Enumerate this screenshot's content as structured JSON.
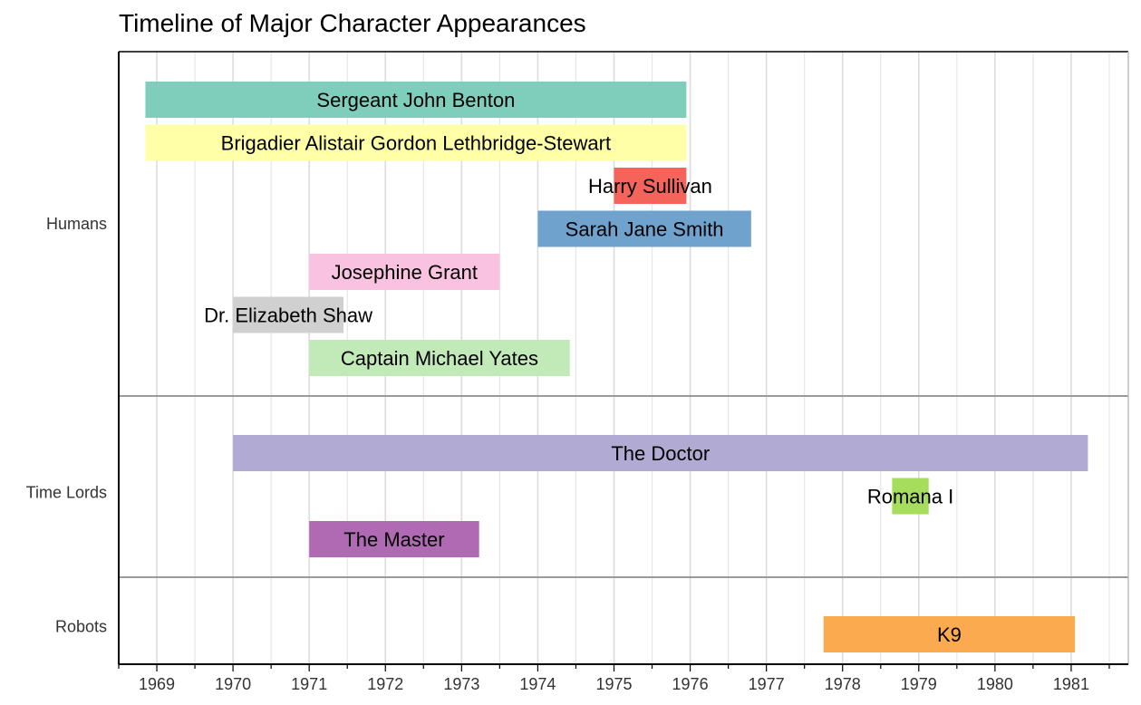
{
  "chart_data": {
    "type": "timeline",
    "title": "Timeline of Major Character Appearances",
    "xlabel": "",
    "ylabel": "",
    "xlim": [
      1968.5,
      1981.75
    ],
    "x_ticks": [
      1969,
      1970,
      1971,
      1972,
      1973,
      1974,
      1975,
      1976,
      1977,
      1978,
      1979,
      1980,
      1981
    ],
    "grid": true,
    "groups": [
      {
        "name": "Humans",
        "items": [
          {
            "label": "Sergeant John Benton",
            "start": 1968.85,
            "end": 1975.95,
            "color": "#7FCDBB"
          },
          {
            "label": "Brigadier Alistair Gordon Lethbridge-Stewart",
            "start": 1968.85,
            "end": 1975.95,
            "color": "#FFFFA8"
          },
          {
            "label": "Harry Sullivan",
            "start": 1975.0,
            "end": 1975.95,
            "color": "#F4645A"
          },
          {
            "label": "Sarah Jane Smith",
            "start": 1974.0,
            "end": 1976.8,
            "color": "#6FA3CD"
          },
          {
            "label": "Josephine Grant",
            "start": 1971.0,
            "end": 1973.5,
            "color": "#F8C2E0"
          },
          {
            "label": "Dr. Elizabeth Shaw",
            "start": 1970.0,
            "end": 1971.45,
            "color": "#D0D0D0"
          },
          {
            "label": "Captain Michael Yates",
            "start": 1971.0,
            "end": 1974.42,
            "color": "#C2E9B8"
          }
        ]
      },
      {
        "name": "Time Lords",
        "items": [
          {
            "label": "The Doctor",
            "start": 1970.0,
            "end": 1981.22,
            "color": "#B1ABD3"
          },
          {
            "label": "Romana I",
            "start": 1978.65,
            "end": 1979.13,
            "color": "#A6DD5C"
          },
          {
            "label": "The Master",
            "start": 1971.0,
            "end": 1973.23,
            "color": "#AF6AB3"
          }
        ]
      },
      {
        "name": "Robots",
        "items": [
          {
            "label": "K9",
            "start": 1977.75,
            "end": 1981.05,
            "color": "#FCAA50"
          }
        ]
      }
    ]
  }
}
